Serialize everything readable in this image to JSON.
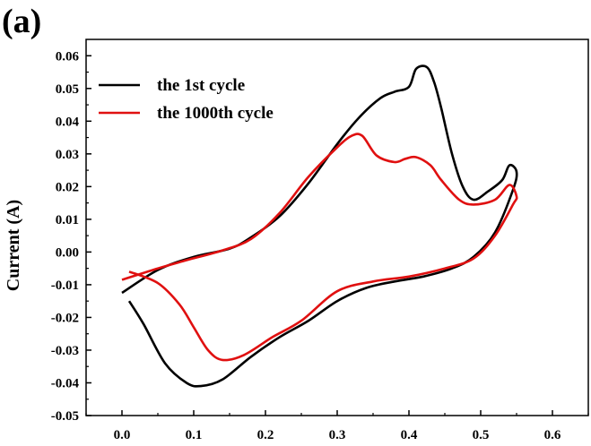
{
  "panel_label": "(a)",
  "chart_data": {
    "type": "line",
    "title": "",
    "xlabel": "",
    "ylabel": "Current (A)",
    "xlim": [
      -0.05,
      0.65
    ],
    "ylim": [
      -0.05,
      0.065
    ],
    "xticks": [
      0.0,
      0.1,
      0.2,
      0.3,
      0.4,
      0.5,
      0.6
    ],
    "xtick_labels": [
      "0.0",
      "0.1",
      "0.2",
      "0.3",
      "0.4",
      "0.5",
      "0.6"
    ],
    "yticks": [
      0.06,
      0.05,
      0.04,
      0.03,
      0.02,
      0.01,
      0.0,
      -0.01,
      -0.02,
      -0.03,
      -0.04,
      -0.05
    ],
    "ytick_labels": [
      "0.06",
      "0.05",
      "0.04",
      "0.03",
      "0.02",
      "0.01",
      "0.00",
      "-0.01",
      "-0.02",
      "-0.03",
      "-0.04",
      "-0.05"
    ],
    "grid": false,
    "legend_position": "top-left",
    "series": [
      {
        "name": "the 1st cycle",
        "color": "#000000",
        "x": [
          0.01,
          0.03,
          0.06,
          0.09,
          0.11,
          0.14,
          0.18,
          0.22,
          0.26,
          0.3,
          0.34,
          0.38,
          0.42,
          0.46,
          0.49,
          0.52,
          0.545,
          0.55,
          0.54,
          0.53,
          0.51,
          0.49,
          0.475,
          0.46,
          0.445,
          0.435,
          0.425,
          0.41,
          0.4,
          0.38,
          0.36,
          0.33,
          0.3,
          0.26,
          0.22,
          0.18,
          0.15,
          0.1,
          0.05,
          0.0
        ],
        "y": [
          -0.015,
          -0.022,
          -0.034,
          -0.04,
          -0.041,
          -0.039,
          -0.032,
          -0.026,
          -0.021,
          -0.015,
          -0.011,
          -0.009,
          -0.0075,
          -0.005,
          -0.0015,
          0.006,
          0.019,
          0.0245,
          0.0265,
          0.022,
          0.0185,
          0.016,
          0.02,
          0.03,
          0.044,
          0.052,
          0.0565,
          0.056,
          0.0505,
          0.049,
          0.047,
          0.041,
          0.033,
          0.021,
          0.011,
          0.0045,
          0.001,
          -0.0015,
          -0.0055,
          -0.0125
        ]
      },
      {
        "name": "the 1000th cycle",
        "color": "#e01010",
        "x": [
          0.01,
          0.05,
          0.08,
          0.1,
          0.12,
          0.14,
          0.17,
          0.21,
          0.25,
          0.3,
          0.35,
          0.4,
          0.45,
          0.49,
          0.52,
          0.545,
          0.55,
          0.54,
          0.52,
          0.49,
          0.47,
          0.445,
          0.43,
          0.41,
          0.395,
          0.38,
          0.355,
          0.335,
          0.32,
          0.3,
          0.26,
          0.22,
          0.18,
          0.14,
          0.09,
          0.05,
          0.0
        ],
        "y": [
          -0.006,
          -0.0095,
          -0.016,
          -0.023,
          -0.03,
          -0.033,
          -0.0315,
          -0.026,
          -0.021,
          -0.012,
          -0.009,
          -0.0075,
          -0.005,
          -0.002,
          0.005,
          0.0145,
          0.017,
          0.0205,
          0.016,
          0.0145,
          0.016,
          0.022,
          0.0265,
          0.029,
          0.0285,
          0.0275,
          0.0295,
          0.0355,
          0.0355,
          0.032,
          0.023,
          0.012,
          0.004,
          0.0005,
          -0.0025,
          -0.005,
          -0.0085
        ]
      }
    ]
  }
}
